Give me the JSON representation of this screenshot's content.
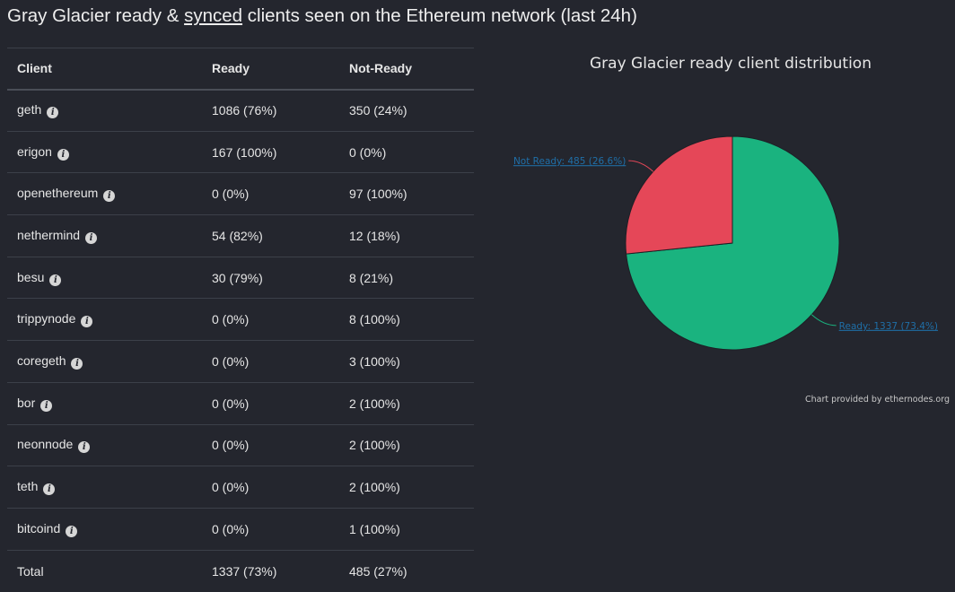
{
  "page": {
    "title_before": "Gray Glacier ready & ",
    "title_link": "synced",
    "title_after": " clients seen on the Ethereum network (last 24h)"
  },
  "table": {
    "headers": [
      "Client",
      "Ready",
      "Not-Ready"
    ],
    "rows": [
      {
        "client": "geth",
        "ready": "1086 (76%)",
        "not_ready": "350 (24%)"
      },
      {
        "client": "erigon",
        "ready": "167 (100%)",
        "not_ready": "0 (0%)"
      },
      {
        "client": "openethereum",
        "ready": "0 (0%)",
        "not_ready": "97 (100%)"
      },
      {
        "client": "nethermind",
        "ready": "54 (82%)",
        "not_ready": "12 (18%)"
      },
      {
        "client": "besu",
        "ready": "30 (79%)",
        "not_ready": "8 (21%)"
      },
      {
        "client": "trippynode",
        "ready": "0 (0%)",
        "not_ready": "8 (100%)"
      },
      {
        "client": "coregeth",
        "ready": "0 (0%)",
        "not_ready": "3 (100%)"
      },
      {
        "client": "bor",
        "ready": "0 (0%)",
        "not_ready": "2 (100%)"
      },
      {
        "client": "neonnode",
        "ready": "0 (0%)",
        "not_ready": "2 (100%)"
      },
      {
        "client": "teth",
        "ready": "0 (0%)",
        "not_ready": "2 (100%)"
      },
      {
        "client": "bitcoind",
        "ready": "0 (0%)",
        "not_ready": "1 (100%)"
      }
    ],
    "total": {
      "client": "Total",
      "ready": "1337 (73%)",
      "not_ready": "485 (27%)"
    }
  },
  "chart": {
    "title": "Gray Glacier ready client distribution",
    "credit": "Chart provided by ethernodes.org"
  },
  "chart_data": {
    "type": "pie",
    "title": "Gray Glacier ready client distribution",
    "slices": [
      {
        "label": "Ready: 1337 (73.4%)",
        "value": 1337,
        "percent": 73.4,
        "color": "#1ab37f"
      },
      {
        "label": "Not Ready: 485 (26.6%)",
        "value": 485,
        "percent": 26.6,
        "color": "#e54758"
      }
    ],
    "label_color": "#1f6fa8"
  }
}
